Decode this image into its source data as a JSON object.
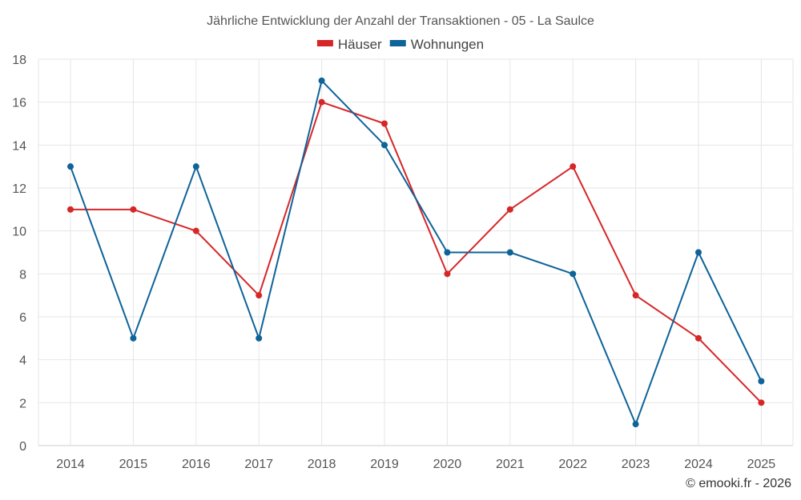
{
  "chart_data": {
    "type": "line",
    "title": "Jährliche Entwicklung der Anzahl der Transaktionen - 05 - La Saulce",
    "xlabel": "",
    "ylabel": "",
    "categories": [
      "2014",
      "2015",
      "2016",
      "2017",
      "2018",
      "2019",
      "2020",
      "2021",
      "2022",
      "2023",
      "2024",
      "2025"
    ],
    "ylim": [
      0,
      18
    ],
    "yticks": [
      0,
      2,
      4,
      6,
      8,
      10,
      12,
      14,
      16,
      18
    ],
    "grid": true,
    "legend_position": "top-center",
    "series": [
      {
        "name": "Häuser",
        "color": "#d62728",
        "values": [
          11,
          11,
          10,
          7,
          16,
          15,
          8,
          11,
          13,
          7,
          5,
          2
        ]
      },
      {
        "name": "Wohnungen",
        "color": "#0e6399",
        "values": [
          13,
          5,
          13,
          5,
          17,
          14,
          9,
          9,
          8,
          1,
          9,
          3
        ]
      }
    ]
  },
  "credit": "© emooki.fr - 2026"
}
